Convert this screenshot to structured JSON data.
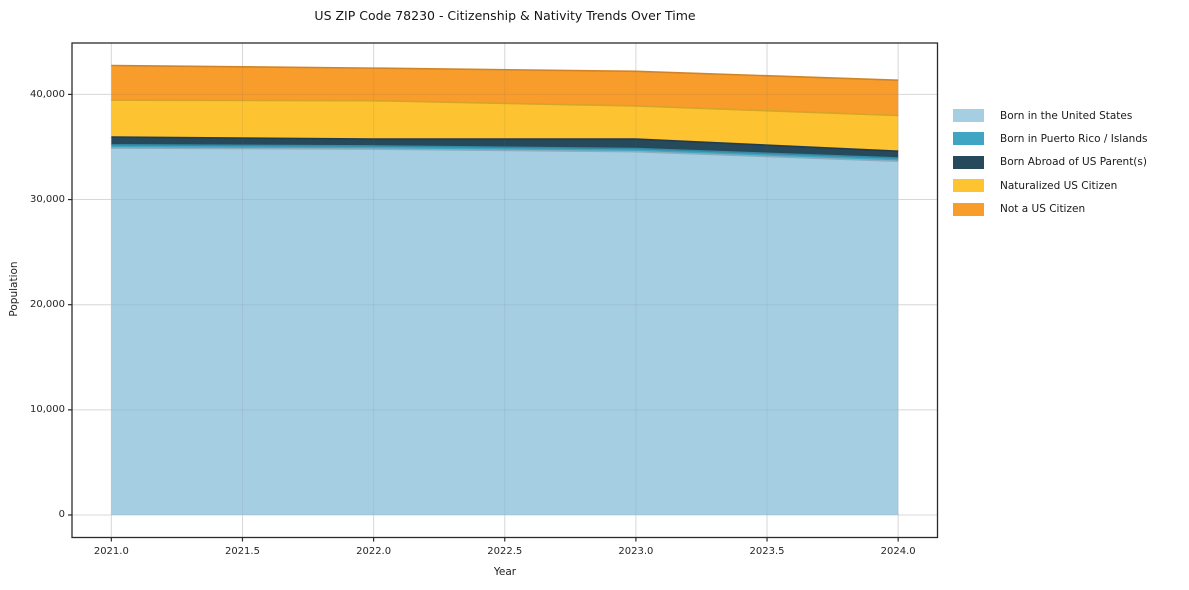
{
  "chart_data": {
    "type": "area",
    "stacked": true,
    "title": "US ZIP Code 78230 - Citizenship & Nativity Trends Over Time",
    "xlabel": "Year",
    "ylabel": "Population",
    "x": [
      2021,
      2022,
      2023,
      2024
    ],
    "series": [
      {
        "name": "Born in the United States",
        "color": "#a5cee3",
        "values": [
          34900,
          34800,
          34550,
          33650
        ]
      },
      {
        "name": "Born in Puerto Rico / Islands",
        "color": "#3fa5c2",
        "values": [
          300,
          300,
          300,
          300
        ]
      },
      {
        "name": "Born Abroad of US Parent(s)",
        "color": "#27495c",
        "values": [
          750,
          650,
          900,
          650
        ]
      },
      {
        "name": "Naturalized US Citizen",
        "color": "#fdc330",
        "values": [
          3500,
          3650,
          3150,
          3400
        ]
      },
      {
        "name": "Not a US Citizen",
        "color": "#f89d2c",
        "values": [
          3300,
          3100,
          3300,
          3350
        ]
      }
    ],
    "totals": [
      42750,
      42500,
      42200,
      41350
    ],
    "xlim": [
      2020.85,
      2024.15
    ],
    "ylim": [
      -2140,
      44890
    ],
    "x_ticks": [
      2021.0,
      2021.5,
      2022.0,
      2022.5,
      2023.0,
      2023.5,
      2024.0
    ],
    "x_tick_labels": [
      "2021.0",
      "2021.5",
      "2022.0",
      "2022.5",
      "2023.0",
      "2023.5",
      "2024.0"
    ],
    "y_ticks": [
      0,
      10000,
      20000,
      30000,
      40000
    ],
    "y_tick_labels": [
      "0",
      "10,000",
      "20,000",
      "30,000",
      "40,000"
    ],
    "grid": true,
    "legend_position": "right-outside",
    "colors": {
      "spine": "#2b2b2b",
      "grid": "#e7e7e7",
      "background": "#ffffff"
    }
  }
}
